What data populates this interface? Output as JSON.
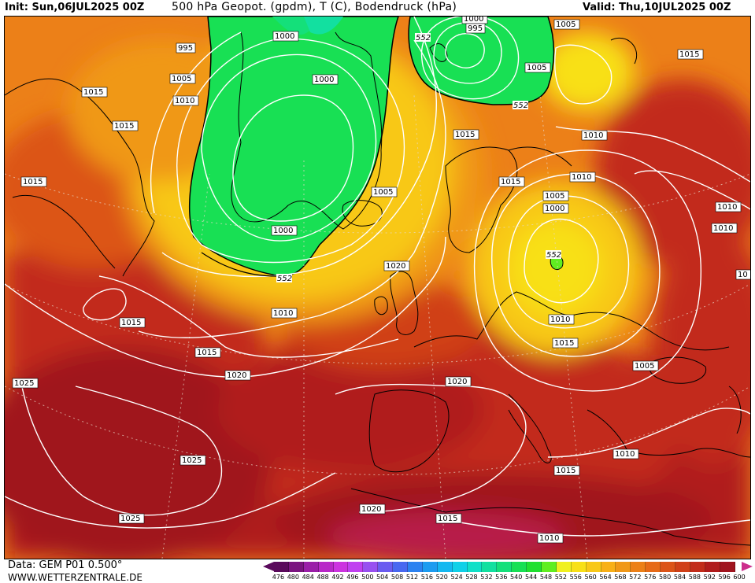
{
  "header": {
    "init": "Init: Sun,06JUL2025 00Z",
    "title": "500 hPa Geopot. (gpdm), T (C), Bodendruck (hPa)",
    "valid": "Valid: Thu,10JUL2025 00Z"
  },
  "footer": {
    "data_source": "Data: GEM P01 0.500°",
    "website": "WWW.WETTERZENTRALE.DE"
  },
  "colorscale": {
    "labels": [
      "476",
      "480",
      "484",
      "488",
      "492",
      "496",
      "500",
      "504",
      "508",
      "512",
      "516",
      "520",
      "524",
      "528",
      "532",
      "536",
      "540",
      "544",
      "548",
      "552",
      "556",
      "560",
      "564",
      "568",
      "572",
      "576",
      "580",
      "584",
      "588",
      "592",
      "596",
      "600"
    ],
    "colors": [
      "#5a0a5c",
      "#7a1480",
      "#9a1ea8",
      "#b828c8",
      "#cc33e0",
      "#c040f0",
      "#9850f0",
      "#6a5cf0",
      "#4868f0",
      "#2c82f0",
      "#1c9cf0",
      "#14b8f0",
      "#10d0e8",
      "#10e0c8",
      "#12e0a0",
      "#14e07a",
      "#18e054",
      "#20e030",
      "#60ee20",
      "#f0f020",
      "#f8e018",
      "#f8c818",
      "#f8b018",
      "#f09818",
      "#ec8018",
      "#e66a18",
      "#dc5418",
      "#d04018",
      "#c22c1a",
      "#b01c1c",
      "#a0141e",
      "#cc2e8c"
    ]
  },
  "map": {
    "geopotential_labels": [
      {
        "value": "552"
      },
      {
        "value": "552"
      },
      {
        "value": "552"
      },
      {
        "value": "552"
      }
    ],
    "isobar_labels": [
      {
        "value": "1000"
      },
      {
        "value": "995"
      },
      {
        "value": "1000"
      },
      {
        "value": "995"
      },
      {
        "value": "1005"
      },
      {
        "value": "1005"
      },
      {
        "value": "1015"
      },
      {
        "value": "1005"
      },
      {
        "value": "1010"
      },
      {
        "value": "1000"
      },
      {
        "value": "1015"
      },
      {
        "value": "1015"
      },
      {
        "value": "1010"
      },
      {
        "value": "1015"
      },
      {
        "value": "1015"
      },
      {
        "value": "1010"
      },
      {
        "value": "1005"
      },
      {
        "value": "1005"
      },
      {
        "value": "1000"
      },
      {
        "value": "1010"
      },
      {
        "value": "1010"
      },
      {
        "value": "1000"
      },
      {
        "value": "1020"
      },
      {
        "value": "1015"
      },
      {
        "value": "1010"
      },
      {
        "value": "1010"
      },
      {
        "value": "1015"
      },
      {
        "value": "1015"
      },
      {
        "value": "1020"
      },
      {
        "value": "1020"
      },
      {
        "value": "1005"
      },
      {
        "value": "1025"
      },
      {
        "value": "1025"
      },
      {
        "value": "1010"
      },
      {
        "value": "1015"
      },
      {
        "value": "1020"
      },
      {
        "value": "1025"
      },
      {
        "value": "1015"
      },
      {
        "value": "1010"
      },
      {
        "value": "10"
      }
    ]
  }
}
